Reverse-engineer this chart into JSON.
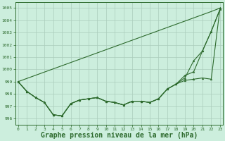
{
  "background_color": "#cceedd",
  "grid_color": "#aaccbb",
  "line_color": "#2d6a2d",
  "xlabel": "Graphe pression niveau de la mer (hPa)",
  "xlabel_fontsize": 7,
  "ylim": [
    995.5,
    1005.5
  ],
  "yticks": [
    996,
    997,
    998,
    999,
    1000,
    1001,
    1002,
    1003,
    1004,
    1005
  ],
  "xlim": [
    -0.3,
    23.3
  ],
  "xticks": [
    0,
    1,
    2,
    3,
    4,
    5,
    6,
    7,
    8,
    9,
    10,
    11,
    12,
    13,
    14,
    15,
    16,
    17,
    18,
    19,
    20,
    21,
    22,
    23
  ],
  "series_straight": [
    999.0,
    999.26,
    999.52,
    999.78,
    1000.04,
    1000.3,
    1000.56,
    1000.82,
    1001.08,
    1001.34,
    1001.6,
    1001.86,
    1002.12,
    1002.38,
    1002.64,
    1002.9,
    1003.16,
    1003.42,
    1003.68,
    1003.94,
    1004.2,
    1004.46,
    1004.72,
    1005.0
  ],
  "series_tri": [
    999.0,
    998.2,
    997.7,
    997.3,
    996.3,
    996.2,
    997.2,
    997.5,
    997.6,
    997.7,
    997.4,
    997.3,
    997.1,
    997.4,
    997.4,
    997.3,
    997.6,
    998.4,
    998.8,
    999.3,
    1000.7,
    1001.5,
    1003.1,
    1004.9
  ],
  "series_star": [
    999.0,
    998.2,
    997.7,
    997.3,
    996.3,
    996.2,
    997.2,
    997.5,
    997.6,
    997.7,
    997.4,
    997.3,
    997.1,
    997.4,
    997.4,
    997.3,
    997.6,
    998.4,
    998.8,
    999.5,
    999.8,
    1001.5,
    1003.1,
    1004.9
  ],
  "series_tri2": [
    999.0,
    998.2,
    997.7,
    997.3,
    996.3,
    996.2,
    997.2,
    997.5,
    997.6,
    997.7,
    997.4,
    997.3,
    997.1,
    997.4,
    997.4,
    997.3,
    997.6,
    998.4,
    998.8,
    999.1,
    999.2,
    999.3,
    999.2,
    1005.0
  ]
}
